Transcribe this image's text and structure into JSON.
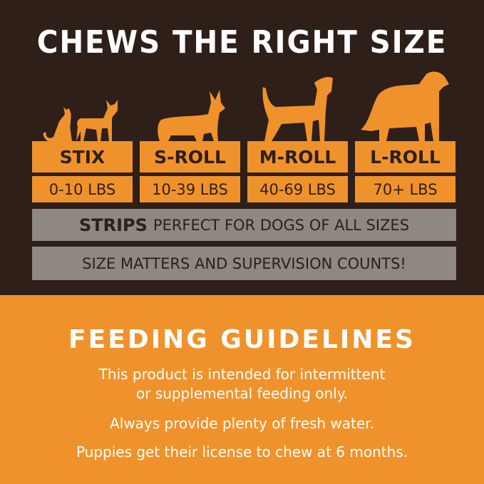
{
  "title": "CHEWS THE RIGHT SIZE",
  "sizes": [
    {
      "name": "STIX",
      "weight": "0-10 LBS",
      "icon": "cat-and-small-dog-icon"
    },
    {
      "name": "S-ROLL",
      "weight": "10-39 LBS",
      "icon": "corgi-icon"
    },
    {
      "name": "M-ROLL",
      "weight": "40-69 LBS",
      "icon": "medium-dog-icon"
    },
    {
      "name": "L-ROLL",
      "weight": "70+ LBS",
      "icon": "large-dog-icon"
    }
  ],
  "strips": {
    "bold": "STRIPS",
    "text": "PERFECT FOR DOGS OF ALL SIZES"
  },
  "notice": "SIZE MATTERS AND SUPERVISION COUNTS!",
  "feeding": {
    "title": "FEEDING GUIDELINES",
    "line1a": "This product is intended for intermittent",
    "line1b": "or supplemental feeding only.",
    "line2": "Always provide plenty of fresh water.",
    "line3": "Puppies get their license to chew at 6 months."
  },
  "colors": {
    "brown": "#2e1f19",
    "orange": "#f0922b",
    "gray": "#8e8782"
  }
}
